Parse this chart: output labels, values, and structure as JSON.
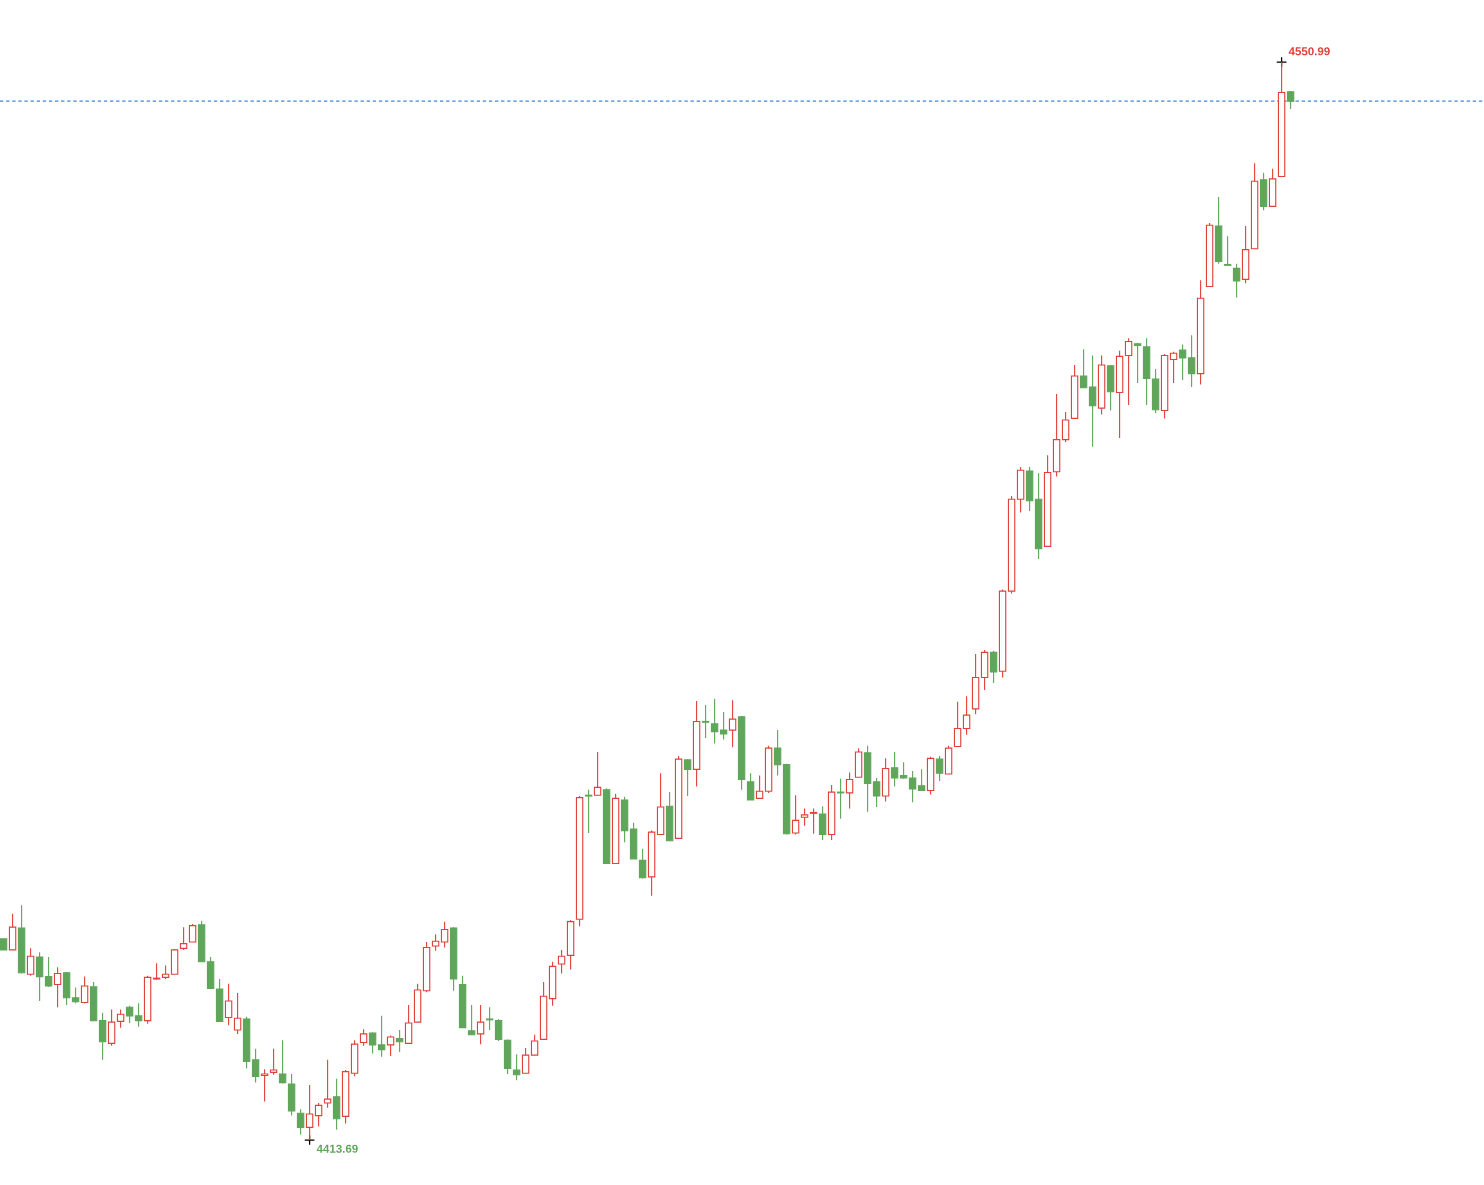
{
  "chart_data": {
    "type": "candlestick",
    "tick_labels": false,
    "categories": [
      null,
      null,
      null,
      null,
      null,
      null,
      null,
      null,
      null,
      null,
      null,
      null,
      null,
      null,
      null,
      null,
      null,
      null,
      null,
      null,
      null,
      null,
      null,
      null,
      null,
      null,
      null,
      null,
      null,
      null,
      null,
      null,
      null,
      null,
      null,
      null,
      null,
      null,
      null,
      null,
      null,
      null,
      null,
      null,
      null,
      null,
      null,
      null,
      null,
      null,
      null,
      null,
      null,
      null,
      null,
      null,
      null,
      null,
      null,
      null,
      null,
      null,
      null,
      null,
      null,
      null,
      null,
      null,
      null,
      null,
      null,
      null,
      null,
      null,
      null,
      null,
      null,
      null,
      null,
      null,
      null,
      null,
      null,
      null,
      null,
      null,
      null,
      null,
      null,
      null,
      null,
      null,
      null,
      null,
      null,
      null,
      null,
      null,
      null,
      null,
      null,
      null,
      null,
      null,
      null,
      null,
      null,
      null,
      null,
      null,
      null,
      null,
      null,
      null,
      null,
      null,
      null,
      null,
      null,
      null,
      null,
      null,
      null,
      null,
      null,
      null,
      null,
      null,
      null,
      null,
      null,
      null,
      null,
      null,
      null,
      null,
      null,
      null,
      null,
      null,
      null,
      null,
      null,
      null
    ],
    "ohlc": [
      [
        4439.3,
        4439.3,
        4437.9,
        4437.9
      ],
      [
        4437.9,
        4442.5,
        4437.9,
        4440.8
      ],
      [
        4440.7,
        4443.6,
        4434.9,
        4435.0
      ],
      [
        4434.8,
        4438.1,
        4434.6,
        4437.1
      ],
      [
        4437.0,
        4437.6,
        4431.4,
        4434.5
      ],
      [
        4434.5,
        4437.0,
        4433.2,
        4433.3
      ],
      [
        4433.5,
        4435.7,
        4430.6,
        4434.9
      ],
      [
        4435.0,
        4435.1,
        4430.9,
        4431.8
      ],
      [
        4431.8,
        4433.1,
        4431.1,
        4431.3
      ],
      [
        4431.2,
        4434.5,
        4431.1,
        4433.3
      ],
      [
        4433.2,
        4433.8,
        4428.9,
        4428.9
      ],
      [
        4428.9,
        4429.9,
        4423.9,
        4426.2
      ],
      [
        4426.0,
        4430.3,
        4425.7,
        4428.7
      ],
      [
        4428.8,
        4430.3,
        4428.0,
        4429.7
      ],
      [
        4430.6,
        4430.8,
        4428.6,
        4429.5
      ],
      [
        4429.5,
        4431.1,
        4428.1,
        4428.9
      ],
      [
        4428.9,
        4434.6,
        4428.5,
        4434.4
      ],
      [
        4434.2,
        4436.2,
        4434.1,
        4434.3
      ],
      [
        4434.4,
        4435.9,
        4434.2,
        4434.8
      ],
      [
        4434.8,
        4438.0,
        4434.8,
        4437.9
      ],
      [
        4438.1,
        4440.8,
        4437.9,
        4438.7
      ],
      [
        4438.9,
        4441.2,
        4438.9,
        4441.0
      ],
      [
        4441.1,
        4441.6,
        4436.4,
        4436.4
      ],
      [
        4436.4,
        4437.0,
        4433.0,
        4433.0
      ],
      [
        4432.9,
        4434.2,
        4428.8,
        4428.8
      ],
      [
        4429.3,
        4433.6,
        4428.3,
        4431.4
      ],
      [
        4427.7,
        4432.4,
        4427.2,
        4429.2
      ],
      [
        4429.1,
        4429.4,
        4422.8,
        4423.7
      ],
      [
        4423.9,
        4425.3,
        4421.0,
        4421.8
      ],
      [
        4421.9,
        4422.7,
        4418.6,
        4422.1
      ],
      [
        4422.3,
        4425.3,
        4422.0,
        4422.6
      ],
      [
        4422.1,
        4426.4,
        4420.9,
        4421.0
      ],
      [
        4420.8,
        4422.1,
        4416.8,
        4417.4
      ],
      [
        4417.1,
        4417.6,
        4414.4,
        4415.3
      ],
      [
        4415.3,
        4420.7,
        4413.69,
        4417.0
      ],
      [
        4416.8,
        4418.4,
        4415.4,
        4418.1
      ],
      [
        4418.4,
        4423.9,
        4417.8,
        4418.9
      ],
      [
        4419.2,
        4421.5,
        4415.0,
        4416.4
      ],
      [
        4416.7,
        4422.6,
        4415.8,
        4422.4
      ],
      [
        4422.2,
        4426.4,
        4421.8,
        4425.9
      ],
      [
        4426.1,
        4427.8,
        4425.7,
        4427.2
      ],
      [
        4427.3,
        4427.4,
        4424.7,
        4425.8
      ],
      [
        4425.8,
        4429.5,
        4424.3,
        4425.2
      ],
      [
        4425.8,
        4427.0,
        4424.4,
        4426.8
      ],
      [
        4426.6,
        4427.7,
        4424.9,
        4426.2
      ],
      [
        4426.0,
        4430.9,
        4426.0,
        4428.6
      ],
      [
        4428.7,
        4433.6,
        4428.7,
        4432.8
      ],
      [
        4432.7,
        4438.9,
        4432.5,
        4438.2
      ],
      [
        4438.4,
        4439.9,
        4437.8,
        4439.0
      ],
      [
        4438.9,
        4441.5,
        4438.2,
        4440.5
      ],
      [
        4440.7,
        4440.8,
        4432.7,
        4434.2
      ],
      [
        4433.5,
        4434.6,
        4428.0,
        4428.0
      ],
      [
        4427.6,
        4430.9,
        4427.1,
        4427.1
      ],
      [
        4427.2,
        4430.9,
        4425.9,
        4428.7
      ],
      [
        4429.1,
        4430.6,
        4427.7,
        4429.0
      ],
      [
        4428.9,
        4429.1,
        4426.3,
        4426.5
      ],
      [
        4426.4,
        4426.5,
        4422.1,
        4422.8
      ],
      [
        4422.6,
        4424.6,
        4421.3,
        4422.0
      ],
      [
        4422.2,
        4425.4,
        4422.2,
        4424.5
      ],
      [
        4424.5,
        4427.1,
        4424.5,
        4426.3
      ],
      [
        4426.5,
        4433.8,
        4426.5,
        4432.0
      ],
      [
        4431.7,
        4436.4,
        4430.8,
        4435.8
      ],
      [
        4436.1,
        4437.9,
        4434.9,
        4437.1
      ],
      [
        4437.2,
        4441.7,
        4435.4,
        4441.5
      ],
      [
        4441.8,
        4457.5,
        4440.9,
        4457.3
      ],
      [
        4457.6,
        4458.3,
        4452.8,
        4457.5
      ],
      [
        4457.6,
        4463.1,
        4457.6,
        4458.6
      ],
      [
        4458.3,
        4458.5,
        4448.9,
        4448.9
      ],
      [
        4448.9,
        4457.8,
        4448.9,
        4457.2
      ],
      [
        4457.0,
        4457.4,
        4451.6,
        4453.1
      ],
      [
        4453.3,
        4454.1,
        4449.5,
        4449.5
      ],
      [
        4449.3,
        4450.8,
        4447.0,
        4447.1
      ],
      [
        4447.2,
        4453.1,
        4444.8,
        4452.9
      ],
      [
        4452.6,
        4460.4,
        4452.6,
        4456.1
      ],
      [
        4456.2,
        4458.0,
        4451.8,
        4451.8
      ],
      [
        4452.1,
        4462.6,
        4452.1,
        4462.2
      ],
      [
        4462.1,
        4462.2,
        4457.5,
        4460.9
      ],
      [
        4460.9,
        4469.6,
        4458.7,
        4467.0
      ],
      [
        4467.0,
        4469.1,
        4464.9,
        4466.9
      ],
      [
        4466.7,
        4469.9,
        4464.2,
        4465.7
      ],
      [
        4465.9,
        4468.2,
        4464.7,
        4465.4
      ],
      [
        4465.9,
        4469.7,
        4463.7,
        4467.3
      ],
      [
        4467.6,
        4467.7,
        4458.3,
        4459.6
      ],
      [
        4459.3,
        4460.4,
        4457.0,
        4457.0
      ],
      [
        4457.2,
        4460.1,
        4457.2,
        4458.1
      ],
      [
        4458.1,
        4463.9,
        4457.9,
        4463.6
      ],
      [
        4463.6,
        4465.9,
        4460.1,
        4461.5
      ],
      [
        4461.5,
        4461.6,
        4452.6,
        4452.7
      ],
      [
        4452.8,
        4457.6,
        4452.6,
        4454.4
      ],
      [
        4454.8,
        4455.9,
        4453.7,
        4455.1
      ],
      [
        4455.3,
        4455.9,
        4452.7,
        4455.4
      ],
      [
        4455.2,
        4456.2,
        4451.9,
        4452.6
      ],
      [
        4452.6,
        4458.9,
        4451.9,
        4458.0
      ],
      [
        4458.0,
        4459.7,
        4454.6,
        4457.9
      ],
      [
        4457.9,
        4460.5,
        4455.9,
        4459.6
      ],
      [
        4459.9,
        4463.6,
        4459.9,
        4463.1
      ],
      [
        4463.0,
        4463.9,
        4455.5,
        4459.1
      ],
      [
        4459.3,
        4459.8,
        4456.1,
        4457.5
      ],
      [
        4457.5,
        4462.3,
        4456.8,
        4461.0
      ],
      [
        4461.1,
        4463.1,
        4458.7,
        4459.8
      ],
      [
        4460.1,
        4461.8,
        4459.7,
        4459.8
      ],
      [
        4459.8,
        4460.7,
        4456.7,
        4458.4
      ],
      [
        4458.8,
        4460.9,
        4458.2,
        4458.2
      ],
      [
        4458.2,
        4462.5,
        4457.7,
        4462.3
      ],
      [
        4462.2,
        4462.6,
        4459.4,
        4460.4
      ],
      [
        4460.3,
        4463.9,
        4460.3,
        4463.6
      ],
      [
        4463.8,
        4469.5,
        4463.8,
        4466.1
      ],
      [
        4466.1,
        4470.2,
        4465.3,
        4467.8
      ],
      [
        4468.6,
        4475.6,
        4467.9,
        4472.6
      ],
      [
        4472.6,
        4476.1,
        4471.0,
        4475.8
      ],
      [
        4475.8,
        4476.0,
        4471.9,
        4473.3
      ],
      [
        4473.4,
        4483.8,
        4472.6,
        4483.6
      ],
      [
        4483.6,
        4495.7,
        4483.3,
        4495.3
      ],
      [
        4495.3,
        4499.4,
        4493.6,
        4499.0
      ],
      [
        4498.9,
        4499.4,
        4493.8,
        4495.1
      ],
      [
        4495.3,
        4498.6,
        4487.7,
        4489.0
      ],
      [
        4489.3,
        4500.9,
        4489.3,
        4498.7
      ],
      [
        4498.8,
        4508.7,
        4498.2,
        4502.9
      ],
      [
        4502.9,
        4506.4,
        4502.6,
        4505.4
      ],
      [
        4505.6,
        4512.4,
        4505.6,
        4511.0
      ],
      [
        4511.0,
        4514.4,
        4509.5,
        4509.5
      ],
      [
        4509.6,
        4513.6,
        4502.0,
        4507.2
      ],
      [
        4506.9,
        4513.6,
        4506.1,
        4512.4
      ],
      [
        4512.3,
        4512.4,
        4506.6,
        4509.0
      ],
      [
        4508.9,
        4514.2,
        4503.1,
        4513.5
      ],
      [
        4513.6,
        4515.8,
        4507.3,
        4515.4
      ],
      [
        4515.1,
        4515.2,
        4510.1,
        4514.9
      ],
      [
        4514.7,
        4515.8,
        4507.3,
        4510.7
      ],
      [
        4510.6,
        4511.9,
        4506.3,
        4506.7
      ],
      [
        4506.6,
        4513.8,
        4505.6,
        4513.6
      ],
      [
        4513.1,
        4514.1,
        4510.1,
        4513.9
      ],
      [
        4514.3,
        4515.0,
        4510.5,
        4513.3
      ],
      [
        4513.3,
        4516.2,
        4509.6,
        4511.3
      ],
      [
        4511.3,
        4523.2,
        4509.9,
        4520.9
      ],
      [
        4522.4,
        4530.5,
        4522.4,
        4530.2
      ],
      [
        4530.1,
        4533.8,
        4525.3,
        4525.6
      ],
      [
        4525.2,
        4528.8,
        4525.1,
        4525.1
      ],
      [
        4524.7,
        4525.3,
        4521.0,
        4523.1
      ],
      [
        4523.3,
        4530.1,
        4522.8,
        4527.1
      ],
      [
        4527.2,
        4538.1,
        4527.2,
        4535.8
      ],
      [
        4536.0,
        4536.9,
        4532.1,
        4532.6
      ],
      [
        4532.6,
        4537.4,
        4532.6,
        4536.1
      ],
      [
        4536.4,
        4550.99,
        4536.4,
        4547.1
      ],
      [
        4547.2,
        4547.3,
        4545.0,
        4546.0
      ]
    ],
    "colors": [
      "#5fa65a",
      "#e0413a",
      "#5fa65a",
      "#e0413a",
      "#5fa65a",
      "#5fa65a",
      "#e0413a",
      "#5fa65a",
      "#5fa65a",
      "#e0413a",
      "#5fa65a",
      "#5fa65a",
      "#e0413a",
      "#e0413a",
      "#5fa65a",
      "#5fa65a",
      "#e0413a",
      "#e0413a",
      "#e0413a",
      "#e0413a",
      "#e0413a",
      "#e0413a",
      "#5fa65a",
      "#5fa65a",
      "#5fa65a",
      "#e0413a",
      "#e0413a",
      "#5fa65a",
      "#5fa65a",
      "#e0413a",
      "#e0413a",
      "#5fa65a",
      "#5fa65a",
      "#5fa65a",
      "#e0413a",
      "#e0413a",
      "#e0413a",
      "#5fa65a",
      "#e0413a",
      "#e0413a",
      "#e0413a",
      "#5fa65a",
      "#5fa65a",
      "#e0413a",
      "#5fa65a",
      "#e0413a",
      "#e0413a",
      "#e0413a",
      "#e0413a",
      "#e0413a",
      "#5fa65a",
      "#5fa65a",
      "#5fa65a",
      "#e0413a",
      "#5fa65a",
      "#5fa65a",
      "#5fa65a",
      "#5fa65a",
      "#e0413a",
      "#e0413a",
      "#e0413a",
      "#e0413a",
      "#e0413a",
      "#e0413a",
      "#e0413a",
      "#5fa65a",
      "#e0413a",
      "#5fa65a",
      "#e0413a",
      "#5fa65a",
      "#5fa65a",
      "#5fa65a",
      "#e0413a",
      "#e0413a",
      "#5fa65a",
      "#e0413a",
      "#5fa65a",
      "#e0413a",
      "#5fa65a",
      "#5fa65a",
      "#5fa65a",
      "#e0413a",
      "#5fa65a",
      "#5fa65a",
      "#e0413a",
      "#e0413a",
      "#5fa65a",
      "#5fa65a",
      "#e0413a",
      "#e0413a",
      "#e0413a",
      "#5fa65a",
      "#e0413a",
      "#5fa65a",
      "#e0413a",
      "#e0413a",
      "#5fa65a",
      "#5fa65a",
      "#e0413a",
      "#5fa65a",
      "#5fa65a",
      "#5fa65a",
      "#5fa65a",
      "#e0413a",
      "#5fa65a",
      "#e0413a",
      "#e0413a",
      "#e0413a",
      "#e0413a",
      "#e0413a",
      "#5fa65a",
      "#e0413a",
      "#e0413a",
      "#e0413a",
      "#5fa65a",
      "#5fa65a",
      "#e0413a",
      "#e0413a",
      "#e0413a",
      "#e0413a",
      "#5fa65a",
      "#5fa65a",
      "#e0413a",
      "#5fa65a",
      "#e0413a",
      "#e0413a",
      "#5fa65a",
      "#5fa65a",
      "#5fa65a",
      "#e0413a",
      "#e0413a",
      "#5fa65a",
      "#5fa65a",
      "#e0413a",
      "#e0413a",
      "#5fa65a",
      "#5fa65a",
      "#5fa65a",
      "#e0413a",
      "#e0413a",
      "#5fa65a",
      "#e0413a",
      "#e0413a",
      "#5fa65a"
    ],
    "ref_lines": [
      {
        "axis": "y",
        "value": 4546.0,
        "color": "#3b87e0",
        "line_style": "dashed"
      }
    ],
    "annotations": [
      "4550.99",
      "4413.69"
    ]
  }
}
